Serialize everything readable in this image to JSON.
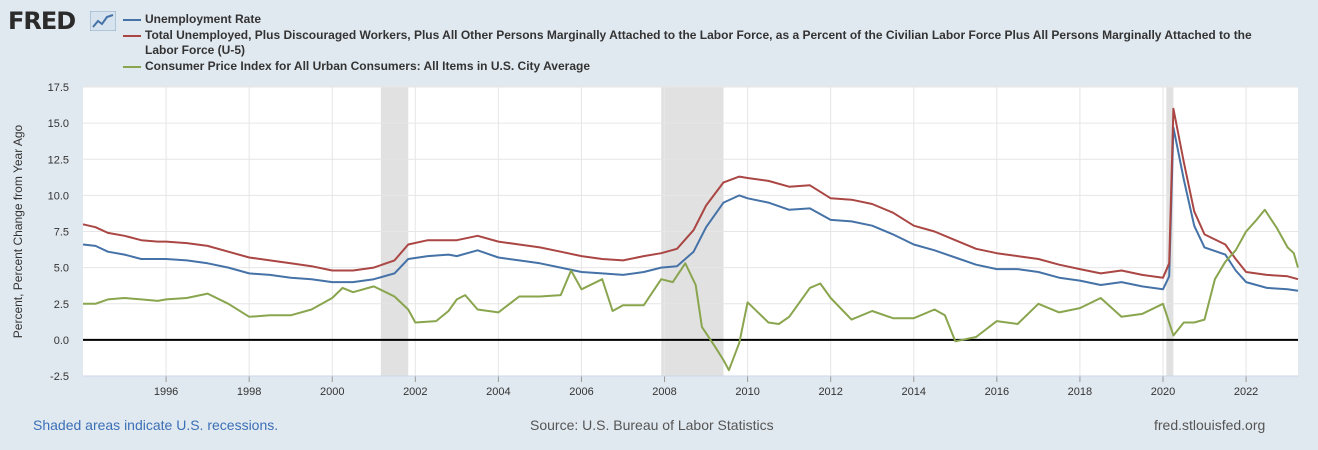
{
  "logo": {
    "text": "FRED",
    "badge_icon": "trend-chart-icon"
  },
  "chart_data": {
    "type": "line",
    "ylabel": "Percent, Percent Change from Year Ago",
    "xlabel": "",
    "ylim": [
      -2.5,
      17.5
    ],
    "xlim": [
      1994.0,
      2023.25
    ],
    "yticks": [
      -2.5,
      0.0,
      2.5,
      5.0,
      7.5,
      10.0,
      12.5,
      15.0,
      17.5
    ],
    "ytick_labels": [
      "-2.5",
      "0.0",
      "2.5",
      "5.0",
      "7.5",
      "10.0",
      "12.5",
      "15.0",
      "17.5"
    ],
    "xticks": [
      1996,
      1998,
      2000,
      2002,
      2004,
      2006,
      2008,
      2010,
      2012,
      2014,
      2016,
      2018,
      2020,
      2022
    ],
    "xtick_labels": [
      "1996",
      "1998",
      "2000",
      "2002",
      "2004",
      "2006",
      "2008",
      "2010",
      "2012",
      "2014",
      "2016",
      "2018",
      "2020",
      "2022"
    ],
    "recessions": [
      [
        2001.17,
        2001.83
      ],
      [
        2007.92,
        2009.42
      ],
      [
        2020.08,
        2020.25
      ]
    ],
    "series": [
      {
        "name": "Unemployment Rate",
        "color": "#4572a7",
        "points": [
          [
            1994.0,
            6.6
          ],
          [
            1994.3,
            6.5
          ],
          [
            1994.6,
            6.1
          ],
          [
            1995.0,
            5.9
          ],
          [
            1995.4,
            5.6
          ],
          [
            1995.8,
            5.6
          ],
          [
            1996.0,
            5.6
          ],
          [
            1996.5,
            5.5
          ],
          [
            1997.0,
            5.3
          ],
          [
            1997.5,
            5.0
          ],
          [
            1998.0,
            4.6
          ],
          [
            1998.5,
            4.5
          ],
          [
            1999.0,
            4.3
          ],
          [
            1999.5,
            4.2
          ],
          [
            2000.0,
            4.0
          ],
          [
            2000.5,
            4.0
          ],
          [
            2001.0,
            4.2
          ],
          [
            2001.5,
            4.6
          ],
          [
            2001.83,
            5.6
          ],
          [
            2002.3,
            5.8
          ],
          [
            2002.8,
            5.9
          ],
          [
            2003.0,
            5.8
          ],
          [
            2003.5,
            6.2
          ],
          [
            2004.0,
            5.7
          ],
          [
            2004.5,
            5.5
          ],
          [
            2005.0,
            5.3
          ],
          [
            2005.5,
            5.0
          ],
          [
            2006.0,
            4.7
          ],
          [
            2006.5,
            4.6
          ],
          [
            2007.0,
            4.5
          ],
          [
            2007.5,
            4.7
          ],
          [
            2007.92,
            5.0
          ],
          [
            2008.3,
            5.1
          ],
          [
            2008.7,
            6.1
          ],
          [
            2009.0,
            7.8
          ],
          [
            2009.42,
            9.5
          ],
          [
            2009.8,
            10.0
          ],
          [
            2010.0,
            9.8
          ],
          [
            2010.5,
            9.5
          ],
          [
            2011.0,
            9.0
          ],
          [
            2011.5,
            9.1
          ],
          [
            2012.0,
            8.3
          ],
          [
            2012.5,
            8.2
          ],
          [
            2013.0,
            7.9
          ],
          [
            2013.5,
            7.3
          ],
          [
            2014.0,
            6.6
          ],
          [
            2014.5,
            6.2
          ],
          [
            2015.0,
            5.7
          ],
          [
            2015.5,
            5.2
          ],
          [
            2016.0,
            4.9
          ],
          [
            2016.5,
            4.9
          ],
          [
            2017.0,
            4.7
          ],
          [
            2017.5,
            4.3
          ],
          [
            2018.0,
            4.1
          ],
          [
            2018.5,
            3.8
          ],
          [
            2019.0,
            4.0
          ],
          [
            2019.5,
            3.7
          ],
          [
            2020.0,
            3.5
          ],
          [
            2020.15,
            4.4
          ],
          [
            2020.25,
            14.7
          ],
          [
            2020.5,
            11.1
          ],
          [
            2020.75,
            7.9
          ],
          [
            2021.0,
            6.4
          ],
          [
            2021.5,
            5.9
          ],
          [
            2021.75,
            4.8
          ],
          [
            2022.0,
            4.0
          ],
          [
            2022.5,
            3.6
          ],
          [
            2023.0,
            3.5
          ],
          [
            2023.25,
            3.4
          ]
        ]
      },
      {
        "name": "Total Unemployed, Plus Discouraged Workers, Plus All Other Persons Marginally Attached to the Labor Force, as a Percent of the Civilian Labor Force Plus All Persons Marginally Attached to the Labor Force (U-5)",
        "color": "#aa4643",
        "points": [
          [
            1994.0,
            8.0
          ],
          [
            1994.3,
            7.8
          ],
          [
            1994.6,
            7.4
          ],
          [
            1995.0,
            7.2
          ],
          [
            1995.4,
            6.9
          ],
          [
            1995.8,
            6.8
          ],
          [
            1996.0,
            6.8
          ],
          [
            1996.5,
            6.7
          ],
          [
            1997.0,
            6.5
          ],
          [
            1997.5,
            6.1
          ],
          [
            1998.0,
            5.7
          ],
          [
            1998.5,
            5.5
          ],
          [
            1999.0,
            5.3
          ],
          [
            1999.5,
            5.1
          ],
          [
            2000.0,
            4.8
          ],
          [
            2000.5,
            4.8
          ],
          [
            2001.0,
            5.0
          ],
          [
            2001.5,
            5.5
          ],
          [
            2001.83,
            6.6
          ],
          [
            2002.3,
            6.9
          ],
          [
            2002.8,
            6.9
          ],
          [
            2003.0,
            6.9
          ],
          [
            2003.5,
            7.2
          ],
          [
            2004.0,
            6.8
          ],
          [
            2004.5,
            6.6
          ],
          [
            2005.0,
            6.4
          ],
          [
            2005.5,
            6.1
          ],
          [
            2006.0,
            5.8
          ],
          [
            2006.5,
            5.6
          ],
          [
            2007.0,
            5.5
          ],
          [
            2007.5,
            5.8
          ],
          [
            2007.92,
            6.0
          ],
          [
            2008.3,
            6.3
          ],
          [
            2008.7,
            7.6
          ],
          [
            2009.0,
            9.3
          ],
          [
            2009.42,
            10.9
          ],
          [
            2009.8,
            11.3
          ],
          [
            2010.0,
            11.2
          ],
          [
            2010.5,
            11.0
          ],
          [
            2011.0,
            10.6
          ],
          [
            2011.5,
            10.7
          ],
          [
            2012.0,
            9.8
          ],
          [
            2012.5,
            9.7
          ],
          [
            2013.0,
            9.4
          ],
          [
            2013.5,
            8.8
          ],
          [
            2014.0,
            7.9
          ],
          [
            2014.5,
            7.5
          ],
          [
            2015.0,
            6.9
          ],
          [
            2015.5,
            6.3
          ],
          [
            2016.0,
            6.0
          ],
          [
            2016.5,
            5.8
          ],
          [
            2017.0,
            5.6
          ],
          [
            2017.5,
            5.2
          ],
          [
            2018.0,
            4.9
          ],
          [
            2018.5,
            4.6
          ],
          [
            2019.0,
            4.8
          ],
          [
            2019.5,
            4.5
          ],
          [
            2020.0,
            4.3
          ],
          [
            2020.15,
            5.3
          ],
          [
            2020.25,
            16.0
          ],
          [
            2020.5,
            12.3
          ],
          [
            2020.75,
            8.9
          ],
          [
            2021.0,
            7.3
          ],
          [
            2021.5,
            6.6
          ],
          [
            2021.75,
            5.6
          ],
          [
            2022.0,
            4.7
          ],
          [
            2022.5,
            4.5
          ],
          [
            2023.0,
            4.4
          ],
          [
            2023.25,
            4.2
          ]
        ]
      },
      {
        "name": "Consumer Price Index for All Urban Consumers: All Items in U.S. City Average",
        "color": "#89a54e",
        "points": [
          [
            1994.0,
            2.5
          ],
          [
            1994.3,
            2.5
          ],
          [
            1994.6,
            2.8
          ],
          [
            1995.0,
            2.9
          ],
          [
            1995.4,
            2.8
          ],
          [
            1995.8,
            2.7
          ],
          [
            1996.0,
            2.8
          ],
          [
            1996.5,
            2.9
          ],
          [
            1997.0,
            3.2
          ],
          [
            1997.5,
            2.5
          ],
          [
            1998.0,
            1.6
          ],
          [
            1998.5,
            1.7
          ],
          [
            1999.0,
            1.7
          ],
          [
            1999.5,
            2.1
          ],
          [
            2000.0,
            2.9
          ],
          [
            2000.25,
            3.6
          ],
          [
            2000.5,
            3.3
          ],
          [
            2001.0,
            3.7
          ],
          [
            2001.5,
            3.0
          ],
          [
            2001.83,
            2.1
          ],
          [
            2002.0,
            1.2
          ],
          [
            2002.5,
            1.3
          ],
          [
            2002.8,
            2.0
          ],
          [
            2003.0,
            2.8
          ],
          [
            2003.2,
            3.1
          ],
          [
            2003.5,
            2.1
          ],
          [
            2004.0,
            1.9
          ],
          [
            2004.5,
            3.0
          ],
          [
            2005.0,
            3.0
          ],
          [
            2005.5,
            3.1
          ],
          [
            2005.75,
            4.8
          ],
          [
            2006.0,
            3.5
          ],
          [
            2006.5,
            4.2
          ],
          [
            2006.75,
            2.0
          ],
          [
            2007.0,
            2.4
          ],
          [
            2007.5,
            2.4
          ],
          [
            2007.92,
            4.2
          ],
          [
            2008.2,
            4.0
          ],
          [
            2008.5,
            5.3
          ],
          [
            2008.75,
            3.8
          ],
          [
            2008.9,
            0.9
          ],
          [
            2009.2,
            -0.4
          ],
          [
            2009.42,
            -1.4
          ],
          [
            2009.55,
            -2.1
          ],
          [
            2009.8,
            -0.2
          ],
          [
            2010.0,
            2.6
          ],
          [
            2010.5,
            1.2
          ],
          [
            2010.75,
            1.1
          ],
          [
            2011.0,
            1.6
          ],
          [
            2011.5,
            3.6
          ],
          [
            2011.75,
            3.9
          ],
          [
            2012.0,
            2.9
          ],
          [
            2012.5,
            1.4
          ],
          [
            2013.0,
            2.0
          ],
          [
            2013.5,
            1.5
          ],
          [
            2014.0,
            1.5
          ],
          [
            2014.5,
            2.1
          ],
          [
            2014.75,
            1.7
          ],
          [
            2015.0,
            -0.1
          ],
          [
            2015.5,
            0.2
          ],
          [
            2016.0,
            1.3
          ],
          [
            2016.5,
            1.1
          ],
          [
            2017.0,
            2.5
          ],
          [
            2017.5,
            1.9
          ],
          [
            2018.0,
            2.2
          ],
          [
            2018.5,
            2.9
          ],
          [
            2019.0,
            1.6
          ],
          [
            2019.5,
            1.8
          ],
          [
            2020.0,
            2.5
          ],
          [
            2020.25,
            0.3
          ],
          [
            2020.5,
            1.2
          ],
          [
            2020.75,
            1.2
          ],
          [
            2021.0,
            1.4
          ],
          [
            2021.25,
            4.2
          ],
          [
            2021.5,
            5.4
          ],
          [
            2021.75,
            6.2
          ],
          [
            2022.0,
            7.5
          ],
          [
            2022.25,
            8.3
          ],
          [
            2022.45,
            9.0
          ],
          [
            2022.75,
            7.7
          ],
          [
            2023.0,
            6.4
          ],
          [
            2023.15,
            6.0
          ],
          [
            2023.25,
            5.0
          ]
        ]
      }
    ]
  },
  "footer": {
    "recession_note": "Shaded areas indicate U.S. recessions.",
    "source": "Source: U.S. Bureau of Labor Statistics",
    "site": "fred.stlouisfed.org"
  }
}
